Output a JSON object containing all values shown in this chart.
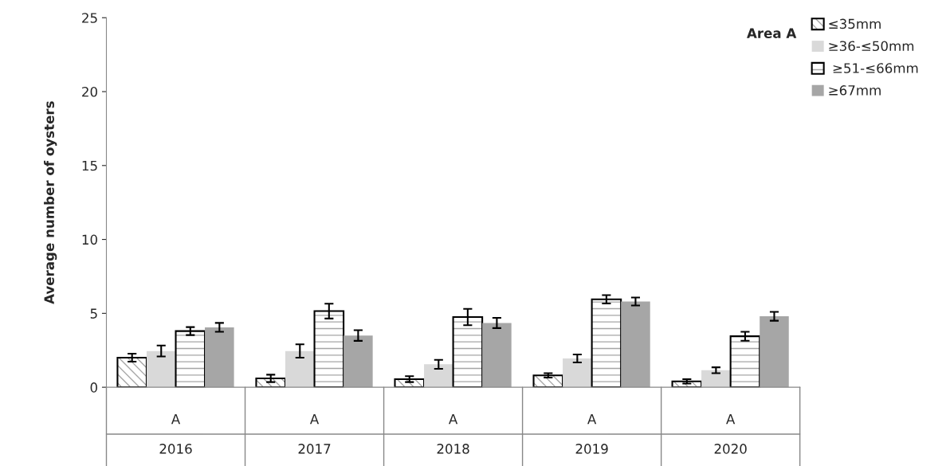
{
  "chart_data": {
    "type": "bar",
    "ylabel": "Average number of oysters",
    "legend_title": "Area A",
    "categories": [
      "A\n\n2016",
      "A\n\n2017",
      "A\n\n2018",
      "A\n\n2019",
      "A\n\n2020"
    ],
    "series": [
      {
        "name": "≤35mm",
        "color": "#000000",
        "values": [
          2.0,
          0.6,
          0.55,
          0.8,
          0.4
        ],
        "errors": [
          0.27,
          0.25,
          0.2,
          0.15,
          0.15
        ]
      },
      {
        "name": "≥36-≤50mm",
        "color": "#d9d9d9",
        "values": [
          2.45,
          2.45,
          1.55,
          1.95,
          1.15
        ],
        "errors": [
          0.37,
          0.45,
          0.3,
          0.27,
          0.2
        ]
      },
      {
        "name": " ≥51-≤66mm",
        "color": "#000000",
        "values": [
          3.8,
          5.15,
          4.75,
          5.95,
          3.45
        ],
        "errors": [
          0.27,
          0.5,
          0.55,
          0.28,
          0.3
        ]
      },
      {
        "name": "≥67mm",
        "color": "#a6a6a6",
        "values": [
          4.05,
          3.5,
          4.35,
          5.8,
          4.8
        ],
        "errors": [
          0.3,
          0.36,
          0.35,
          0.27,
          0.3
        ]
      }
    ],
    "ylim": [
      0,
      25
    ],
    "yticks": [
      0,
      5,
      10,
      15,
      20,
      25
    ],
    "grid": false,
    "legend": "top right"
  }
}
